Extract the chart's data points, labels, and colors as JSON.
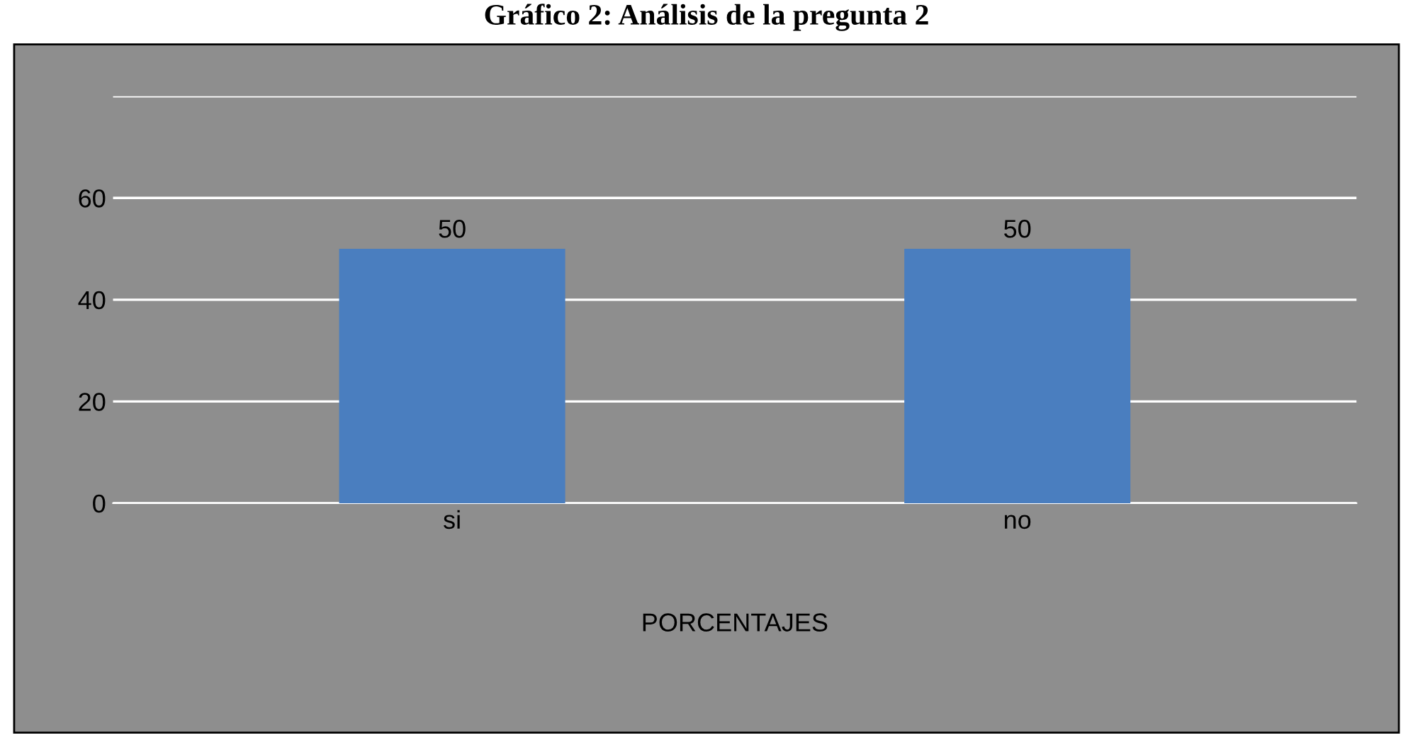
{
  "chart_data": {
    "type": "bar",
    "title": "Gráfico 2: Análisis de la pregunta 2",
    "xlabel": "PORCENTAJES",
    "categories": [
      "si",
      "no"
    ],
    "series": [
      {
        "color": "#4a7ebf",
        "values": [
          50,
          50
        ]
      }
    ],
    "data_labels": true,
    "ylim": [
      0,
      80
    ],
    "yticks": [
      0,
      20,
      40,
      60,
      {
        "value": 80,
        "label": null
      }
    ],
    "grid": "y",
    "legend": false
  }
}
